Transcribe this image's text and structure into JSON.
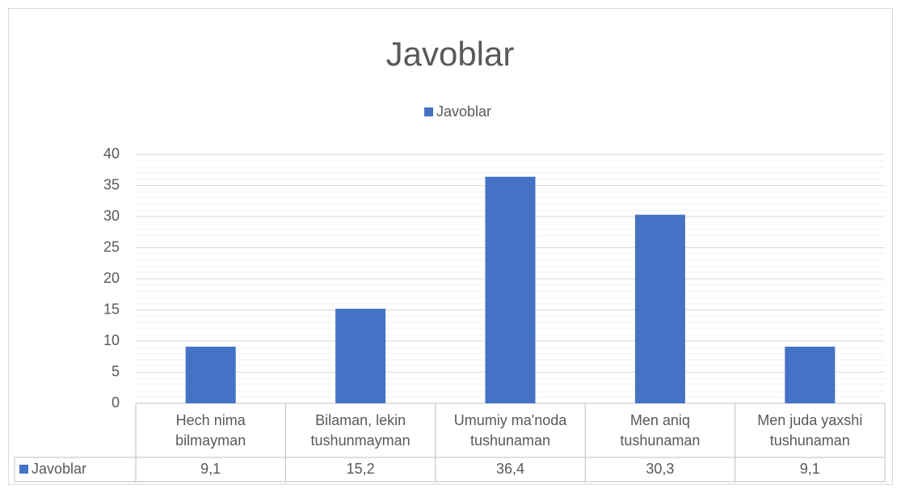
{
  "chart_data": {
    "type": "bar",
    "title": "Javoblar",
    "categories": [
      "Hech nima bilmayman",
      "Bilaman, lekin tushunmayman",
      "Umumiy ma'noda tushunaman",
      "Men aniq tushunaman",
      "Men juda yaxshi tushunaman"
    ],
    "series": [
      {
        "name": "Javoblar",
        "color": "#4472c4",
        "values": [
          9.1,
          15.2,
          36.4,
          30.3,
          9.1
        ],
        "value_labels": [
          "9,1",
          "15,2",
          "36,4",
          "30,3",
          "9,1"
        ]
      }
    ],
    "ylim": [
      0,
      40
    ],
    "yticks": [
      0,
      5,
      10,
      15,
      20,
      25,
      30,
      35,
      40
    ],
    "grid": true,
    "minor_grid": true,
    "legend": "top",
    "data_table": true
  }
}
